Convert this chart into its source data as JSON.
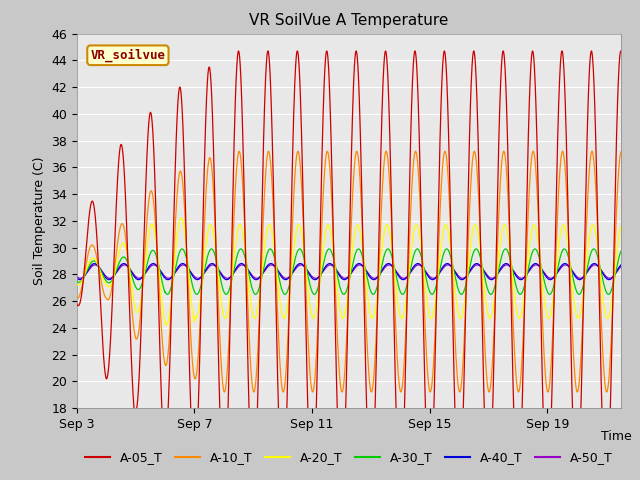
{
  "title": "VR SoilVue A Temperature",
  "ylabel": "Soil Temperature (C)",
  "xlabel": "Time",
  "ylim": [
    18,
    46
  ],
  "yticks": [
    18,
    20,
    22,
    24,
    26,
    28,
    30,
    32,
    34,
    36,
    38,
    40,
    42,
    44,
    46
  ],
  "fig_bg_color": "#c8c8c8",
  "plot_bg_color": "#e8e8e8",
  "series_colors": {
    "A-05_T": "#cc0000",
    "A-10_T": "#ff8800",
    "A-20_T": "#ffff00",
    "A-30_T": "#00cc00",
    "A-40_T": "#0000dd",
    "A-50_T": "#9900cc"
  },
  "watermark_text": "VR_soilvue",
  "watermark_bg": "#ffffcc",
  "watermark_border": "#cc8800",
  "n_days": 19,
  "samples_per_day": 144,
  "base_temp": 28.2,
  "xtick_labels": [
    "Sep 3",
    "Sep 7",
    "Sep 11",
    "Sep 15",
    "Sep 19"
  ],
  "xtick_days": [
    0,
    4,
    8,
    12,
    16
  ]
}
